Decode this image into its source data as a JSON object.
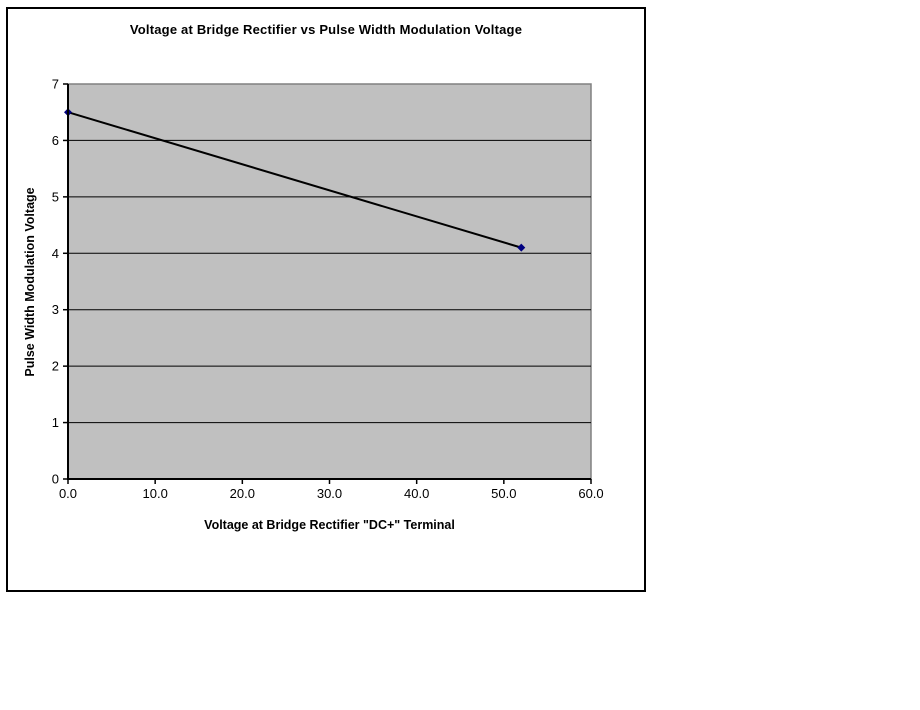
{
  "page": {
    "background": "#ffffff"
  },
  "chart_data": {
    "type": "line",
    "title": "Voltage at Bridge Rectifier vs Pulse Width Modulation Voltage",
    "xlabel": "Voltage at Bridge Rectifier \"DC+\" Terminal",
    "ylabel": "Pulse Width Modulation Voltage",
    "points": [
      {
        "x": 0.0,
        "y": 6.5
      },
      {
        "x": 52.0,
        "y": 4.1
      }
    ],
    "xlim": [
      0,
      60
    ],
    "ylim": [
      0,
      7
    ],
    "x_ticks": [
      {
        "value": 0,
        "label": "0.0"
      },
      {
        "value": 10,
        "label": "10.0"
      },
      {
        "value": 20,
        "label": "20.0"
      },
      {
        "value": 30,
        "label": "30.0"
      },
      {
        "value": 40,
        "label": "40.0"
      },
      {
        "value": 50,
        "label": "50.0"
      },
      {
        "value": 60,
        "label": "60.0"
      }
    ],
    "y_ticks": [
      {
        "value": 0,
        "label": "0"
      },
      {
        "value": 1,
        "label": "1"
      },
      {
        "value": 2,
        "label": "2"
      },
      {
        "value": 3,
        "label": "3"
      },
      {
        "value": 4,
        "label": "4"
      },
      {
        "value": 5,
        "label": "5"
      },
      {
        "value": 6,
        "label": "6"
      },
      {
        "value": 7,
        "label": "7"
      }
    ],
    "grid": "horizontal-major",
    "legend": "none",
    "colors": {
      "plot_bg": "#c0c0c0",
      "plot_border": "#808080",
      "gridline": "#000000",
      "axis": "#000000",
      "line": "#000000",
      "marker": "#000080",
      "frame_border": "#000000",
      "text": "#000000"
    }
  }
}
